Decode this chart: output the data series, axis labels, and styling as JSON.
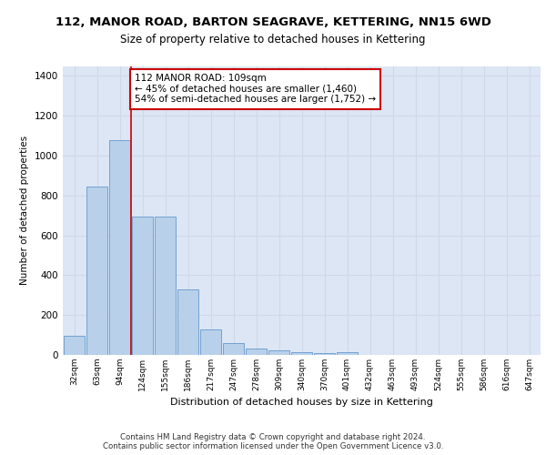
{
  "title_line1": "112, MANOR ROAD, BARTON SEAGRAVE, KETTERING, NN15 6WD",
  "title_line2": "Size of property relative to detached houses in Kettering",
  "xlabel": "Distribution of detached houses by size in Kettering",
  "ylabel": "Number of detached properties",
  "categories": [
    "32sqm",
    "63sqm",
    "94sqm",
    "124sqm",
    "155sqm",
    "186sqm",
    "217sqm",
    "247sqm",
    "278sqm",
    "309sqm",
    "340sqm",
    "370sqm",
    "401sqm",
    "432sqm",
    "463sqm",
    "493sqm",
    "524sqm",
    "555sqm",
    "586sqm",
    "616sqm",
    "647sqm"
  ],
  "values": [
    97,
    843,
    1080,
    693,
    693,
    330,
    130,
    60,
    30,
    25,
    15,
    10,
    12,
    0,
    0,
    0,
    0,
    0,
    0,
    0,
    0
  ],
  "bar_color": "#b8d0ea",
  "bar_edge_color": "#6699cc",
  "vline_x_bin": 3,
  "vline_color": "#cc0000",
  "annotation_text": "112 MANOR ROAD: 109sqm\n← 45% of detached houses are smaller (1,460)\n54% of semi-detached houses are larger (1,752) →",
  "annotation_box_color": "#cc0000",
  "ylim": [
    0,
    1450
  ],
  "yticks": [
    0,
    200,
    400,
    600,
    800,
    1000,
    1200,
    1400
  ],
  "grid_color": "#d0d8e8",
  "bg_color": "#dce6f5",
  "footer_line1": "Contains HM Land Registry data © Crown copyright and database right 2024.",
  "footer_line2": "Contains public sector information licensed under the Open Government Licence v3.0."
}
